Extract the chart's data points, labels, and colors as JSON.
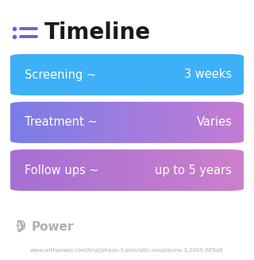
{
  "title": "Timeline",
  "title_fontsize": 20,
  "title_color": "#1a1a1a",
  "icon_color": "#7c5cbf",
  "icon_line_color": "#7c5cbf",
  "background_color": "#ffffff",
  "rows": [
    {
      "label": "Screening ~",
      "value": "3 weeks",
      "color_left": "#3db0f7",
      "color_right": "#3db0f7"
    },
    {
      "label": "Treatment ~",
      "value": "Varies",
      "color_left": "#7b7de8",
      "color_right": "#c47bd4"
    },
    {
      "label": "Follow ups ~",
      "value": "up to 5 years",
      "color_left": "#a570d4",
      "color_right": "#cc80cc"
    }
  ],
  "row_text_color": "#ffffff",
  "row_label_fontsize": 10.5,
  "row_value_fontsize": 10.5,
  "watermark_text": "Power",
  "watermark_color": "#b0b0b0",
  "url_text": "www.withpower.com/trial/phase-3-prostatic-neoplasms-3-2006-665d6",
  "url_color": "#b0b0b0",
  "url_fontsize": 5.0
}
